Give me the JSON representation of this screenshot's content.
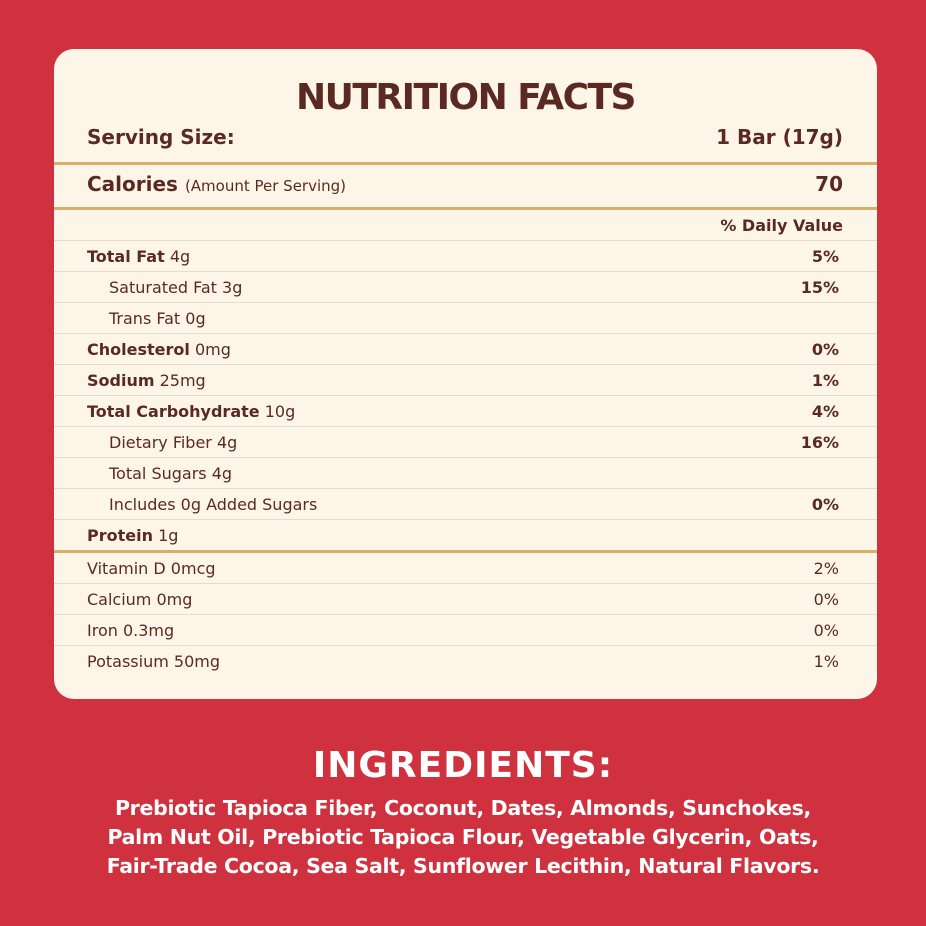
{
  "title": "NUTRITION FACTS",
  "serving": {
    "label": "Serving Size:",
    "value": "1 Bar (17g)"
  },
  "calories": {
    "label": "Calories",
    "note": "(Amount Per Serving)",
    "value": "70"
  },
  "daily_value_header": "% Daily Value",
  "nutrients": [
    {
      "name": "Total Fat",
      "amount": "4g",
      "dv": "5%",
      "sub": [
        {
          "name": "Saturated Fat",
          "amount": "3g",
          "dv": "15%"
        },
        {
          "name": "Trans Fat",
          "amount": "0g"
        }
      ]
    },
    {
      "name": "Cholesterol",
      "amount": "0mg",
      "dv": "0%"
    },
    {
      "name": "Sodium",
      "amount": "25mg",
      "dv": "1%"
    },
    {
      "name": "Total Carbohydrate",
      "amount": "10g",
      "dv": "4%",
      "sub": [
        {
          "name": "Dietary Fiber",
          "amount": "4g",
          "dv": "16%"
        },
        {
          "name": "Total Sugars",
          "amount": "4g"
        },
        {
          "name": "Includes 0g Added Sugars",
          "dv": "0%"
        }
      ]
    },
    {
      "name": "Protein",
      "amount": "1g"
    }
  ],
  "vitamins": [
    {
      "name": "Vitamin D",
      "amount": "0mcg",
      "dv": "2%"
    },
    {
      "name": "Calcium",
      "amount": "0mg",
      "dv": "0%"
    },
    {
      "name": "Iron",
      "amount": "0.3mg",
      "dv": "0%"
    },
    {
      "name": "Potassium",
      "amount": "50mg",
      "dv": "1%"
    }
  ],
  "ingredients": {
    "title": "INGREDIENTS:",
    "lines": [
      "Prebiotic Tapioca Fiber, Coconut, Dates, Almonds, Sunchokes,",
      "Palm Nut Oil, Prebiotic Tapioca Flour, Vegetable Glycerin, Oats,",
      "Fair-Trade Cocoa, Sea Salt, Sunflower Lecithin, Natural Flavors."
    ]
  }
}
